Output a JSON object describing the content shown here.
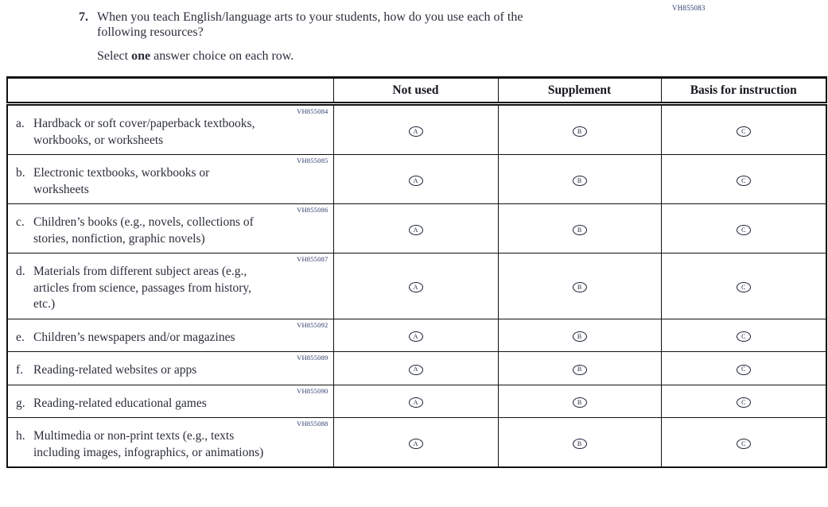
{
  "meta": {
    "form_code": "VH855083"
  },
  "question": {
    "number": "7.",
    "text_lines": [
      "When you teach English/language arts to your students, how do you use each of the",
      "following resources?"
    ],
    "instruction": {
      "prefix": "Select ",
      "bold": "one",
      "suffix": " answer choice on each row."
    }
  },
  "table": {
    "column_headers": [
      "Not used",
      "Supplement",
      "Basis for instruction"
    ],
    "answer_options": [
      "A",
      "B",
      "C"
    ],
    "rows": [
      {
        "code": "VH855084",
        "letter": "a.",
        "lines": [
          "Hardback or soft cover/paperback textbooks,",
          "workbooks, or worksheets"
        ]
      },
      {
        "code": "VH855085",
        "letter": "b.",
        "lines": [
          "Electronic textbooks, workbooks or",
          "worksheets"
        ]
      },
      {
        "code": "VH855086",
        "letter": "c.",
        "lines": [
          "Children’s books (e.g., novels, collections of",
          "stories, nonfiction, graphic novels)"
        ]
      },
      {
        "code": "VH855087",
        "letter": "d.",
        "lines": [
          "Materials from different subject areas (e.g.,",
          "articles from science, passages from history,",
          "etc.)"
        ]
      },
      {
        "code": "VH855092",
        "letter": "e.",
        "lines": [
          "Children’s newspapers and/or magazines"
        ]
      },
      {
        "code": "VH855089",
        "letter": "f.",
        "lines": [
          "Reading-related websites or apps"
        ]
      },
      {
        "code": "VH855090",
        "letter": "g.",
        "lines": [
          "Reading-related educational games"
        ]
      },
      {
        "code": "VH855088",
        "letter": "h.",
        "lines": [
          "Multimedia or non-print texts (e.g., texts",
          "including images, infographics, or animations)"
        ]
      }
    ]
  },
  "colors": {
    "ink": "#2b2e3a",
    "code_blue": "#2e3a6c",
    "border": "#111111"
  }
}
